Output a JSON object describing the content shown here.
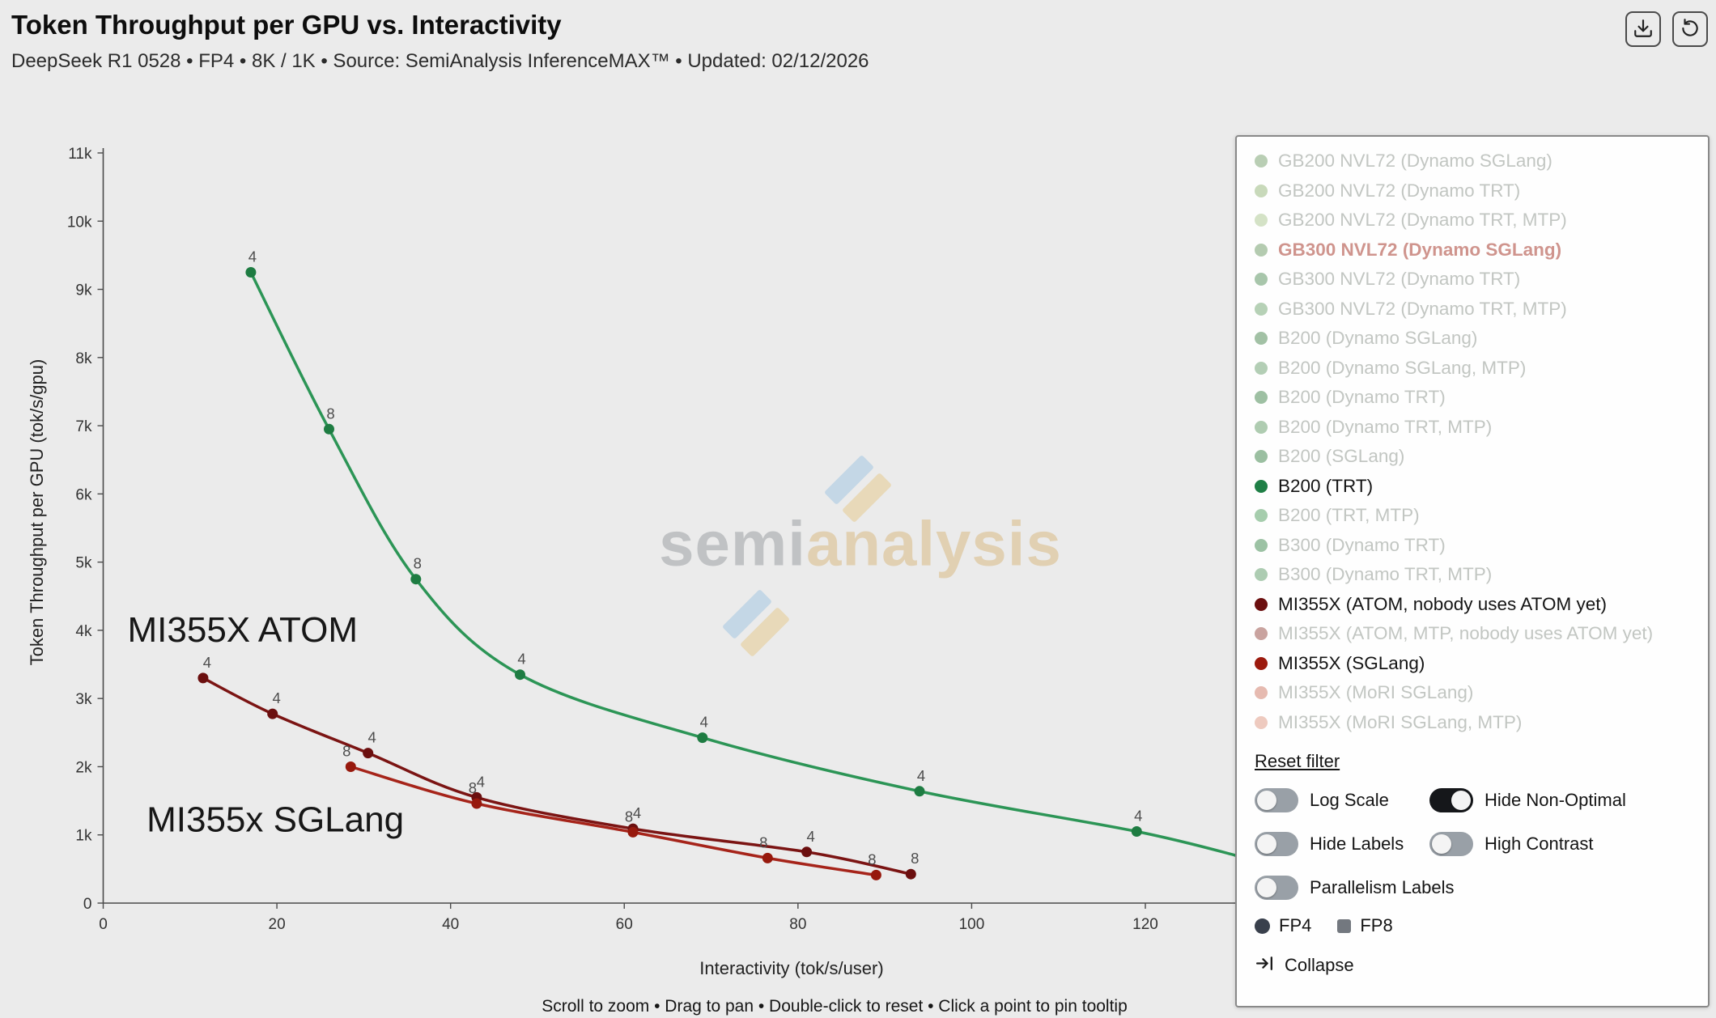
{
  "header": {
    "title": "Token Throughput per GPU vs. Interactivity",
    "subtitle": "DeepSeek R1 0528 • FP4 • 8K / 1K • Source: SemiAnalysis InferenceMAX™ • Updated: 02/12/2026",
    "buttons": [
      {
        "name": "download",
        "icon": "download-icon"
      },
      {
        "name": "reset-view",
        "icon": "reset-icon"
      }
    ]
  },
  "watermark": {
    "text": "semianalysis",
    "gray_part": "semi",
    "gold_part": "analysis"
  },
  "chart_data": {
    "type": "line",
    "title": "Token Throughput per GPU vs. Interactivity",
    "xlabel": "Interactivity (tok/s/user)",
    "ylabel": "Token Throughput per GPU (tok/s/gpu)",
    "xlim": [
      0,
      133
    ],
    "ylim": [
      0,
      11000
    ],
    "grid": false,
    "legend_position": "right-panel",
    "x_ticks": [
      {
        "v": 0,
        "label": "0"
      },
      {
        "v": 20,
        "label": "20"
      },
      {
        "v": 40,
        "label": "40"
      },
      {
        "v": 60,
        "label": "60"
      },
      {
        "v": 80,
        "label": "80"
      },
      {
        "v": 100,
        "label": "100"
      },
      {
        "v": 120,
        "label": "120"
      }
    ],
    "y_ticks": [
      {
        "v": 0,
        "label": "0"
      },
      {
        "v": 1000,
        "label": "1k"
      },
      {
        "v": 2000,
        "label": "2k"
      },
      {
        "v": 3000,
        "label": "3k"
      },
      {
        "v": 4000,
        "label": "4k"
      },
      {
        "v": 5000,
        "label": "5k"
      },
      {
        "v": 6000,
        "label": "6k"
      },
      {
        "v": 7000,
        "label": "7k"
      },
      {
        "v": 8000,
        "label": "8k"
      },
      {
        "v": 9000,
        "label": "9k"
      },
      {
        "v": 10000,
        "label": "10k"
      },
      {
        "v": 11000,
        "label": "11k"
      }
    ],
    "series": [
      {
        "name": "B200 (TRT)",
        "color": "#2c9556",
        "marker_color": "#1e7c42",
        "points": [
          {
            "x": 17,
            "y": 9250,
            "label": "4"
          },
          {
            "x": 26,
            "y": 6950,
            "label": "8"
          },
          {
            "x": 36,
            "y": 4750,
            "label": "8"
          },
          {
            "x": 48,
            "y": 3350,
            "label": "4"
          },
          {
            "x": 69,
            "y": 2425,
            "label": "4"
          },
          {
            "x": 94,
            "y": 1640,
            "label": "4"
          },
          {
            "x": 119,
            "y": 1050,
            "label": "4"
          },
          {
            "x": 131,
            "y": 680,
            "label": ""
          }
        ]
      },
      {
        "name": "MI355X (ATOM, nobody uses ATOM yet)",
        "color": "#7b1413",
        "marker_color": "#6b0f0f",
        "points": [
          {
            "x": 11.5,
            "y": 3300,
            "label": "4"
          },
          {
            "x": 19.5,
            "y": 2775,
            "label": "4"
          },
          {
            "x": 30.5,
            "y": 2200,
            "label": "4"
          },
          {
            "x": 43,
            "y": 1550,
            "label": "4"
          },
          {
            "x": 61,
            "y": 1090,
            "label": "4"
          },
          {
            "x": 81,
            "y": 750,
            "label": "4"
          },
          {
            "x": 93,
            "y": 425,
            "label": "8"
          }
        ]
      },
      {
        "name": "MI355X (SGLang)",
        "color": "#a6241a",
        "marker_color": "#97190d",
        "points": [
          {
            "x": 28.5,
            "y": 2000,
            "label": "8"
          },
          {
            "x": 43,
            "y": 1460,
            "label": "8"
          },
          {
            "x": 61,
            "y": 1040,
            "label": "8"
          },
          {
            "x": 76.5,
            "y": 660,
            "label": "8"
          },
          {
            "x": 89,
            "y": 410,
            "label": "8"
          }
        ]
      }
    ],
    "annotations": [
      {
        "text": "MI355X ATOM",
        "x": 2.8,
        "y": 3830
      },
      {
        "text": "MI355x SGLang",
        "x": 5.0,
        "y": 1050
      }
    ]
  },
  "legend": {
    "items": [
      {
        "label": "GB200 NVL72 (Dynamo SGLang)",
        "color": "#b9ceb4",
        "state": "inactive"
      },
      {
        "label": "GB200 NVL72 (Dynamo TRT)",
        "color": "#c8d9ba",
        "state": "inactive"
      },
      {
        "label": "GB200 NVL72 (Dynamo TRT, MTP)",
        "color": "#d4e2c6",
        "state": "inactive"
      },
      {
        "label": "GB300 NVL72 (Dynamo SGLang)",
        "color": "#b4cbb0",
        "state": "highlight"
      },
      {
        "label": "GB300 NVL72 (Dynamo TRT)",
        "color": "#a8c6ab",
        "state": "inactive"
      },
      {
        "label": "GB300 NVL72 (Dynamo TRT, MTP)",
        "color": "#b6d1b6",
        "state": "inactive"
      },
      {
        "label": "B200 (Dynamo SGLang)",
        "color": "#a2c1a5",
        "state": "inactive"
      },
      {
        "label": "B200 (Dynamo SGLang, MTP)",
        "color": "#b3ceb5",
        "state": "inactive"
      },
      {
        "label": "B200 (Dynamo TRT)",
        "color": "#9ec0a3",
        "state": "inactive"
      },
      {
        "label": "B200 (Dynamo TRT, MTP)",
        "color": "#afccb1",
        "state": "inactive"
      },
      {
        "label": "B200 (SGLang)",
        "color": "#9bbfa1",
        "state": "inactive"
      },
      {
        "label": "B200 (TRT)",
        "color": "#1f7f46",
        "state": "active"
      },
      {
        "label": "B200 (TRT, MTP)",
        "color": "#a6cdad",
        "state": "inactive"
      },
      {
        "label": "B300 (Dynamo TRT)",
        "color": "#9cc2a4",
        "state": "inactive"
      },
      {
        "label": "B300 (Dynamo TRT, MTP)",
        "color": "#adccb2",
        "state": "inactive"
      },
      {
        "label": "MI355X (ATOM, nobody uses ATOM yet)",
        "color": "#6b0f0f",
        "state": "active"
      },
      {
        "label": "MI355X (ATOM, MTP, nobody uses ATOM yet)",
        "color": "#c9a39f",
        "state": "inactive"
      },
      {
        "label": "MI355X (SGLang)",
        "color": "#9c1a0e",
        "state": "active"
      },
      {
        "label": "MI355X (MoRI SGLang)",
        "color": "#e6bab0",
        "state": "inactive"
      },
      {
        "label": "MI355X (MoRI SGLang, MTP)",
        "color": "#eecabf",
        "state": "inactive"
      }
    ]
  },
  "controls": {
    "reset_filter": "Reset filter",
    "toggles": [
      {
        "label": "Log Scale",
        "on": false
      },
      {
        "label": "Hide Non-Optimal",
        "on": true
      },
      {
        "label": "Hide Labels",
        "on": false
      },
      {
        "label": "High Contrast",
        "on": false
      },
      {
        "label": "Parallelism Labels",
        "on": false
      }
    ],
    "fp4": "FP4",
    "fp8": "FP8",
    "collapse": "Collapse",
    "icons": {
      "fp4": "filled-circle-marker",
      "fp8": "filled-square-marker",
      "collapse": "collapse-arrow-icon"
    }
  },
  "footer": {
    "hint": "Scroll to zoom • Drag to pan • Double-click to reset • Click a point to pin tooltip"
  }
}
